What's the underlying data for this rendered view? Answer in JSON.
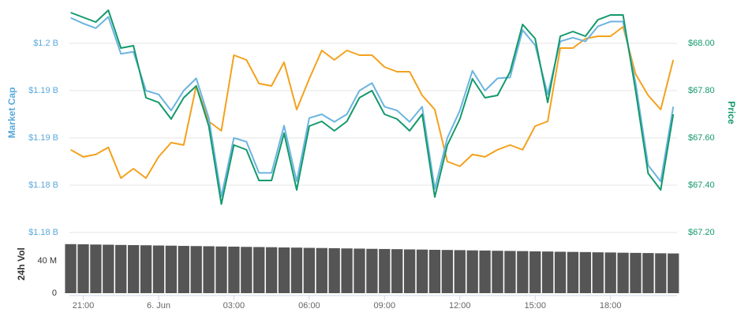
{
  "chart_data": [
    {
      "type": "line",
      "ylabel": "Market Cap",
      "y2label": "Price",
      "x": [
        20.5,
        21,
        21.5,
        22,
        22.5,
        23,
        23.5,
        24,
        24.5,
        25,
        25.5,
        26,
        26.5,
        27,
        27.5,
        28,
        28.5,
        29,
        29.5,
        30,
        30.5,
        31,
        31.5,
        32,
        32.5,
        33,
        33.5,
        34,
        34.5,
        35,
        35.5,
        36,
        36.5,
        37,
        37.5,
        38,
        38.5,
        39,
        39.5,
        40,
        40.5,
        41,
        41.5,
        42,
        42.5,
        43,
        43.5,
        44,
        44.5
      ],
      "xlim": [
        20.45,
        44.65
      ],
      "xticks": [
        {
          "value": 21,
          "label": "21:00"
        },
        {
          "value": 24,
          "label": "6. Jun"
        },
        {
          "value": 27,
          "label": "03:00"
        },
        {
          "value": 30,
          "label": "06:00"
        },
        {
          "value": 33,
          "label": "09:00"
        },
        {
          "value": 36,
          "label": "12:00"
        },
        {
          "value": 39,
          "label": "15:00"
        },
        {
          "value": 42,
          "label": "18:00"
        }
      ],
      "ylim": [
        1.18,
        1.20375
      ],
      "yticks": [
        {
          "value": 1.18,
          "label": "$1.18 B"
        },
        {
          "value": 1.185,
          "label": "$1.18 B"
        },
        {
          "value": 1.19,
          "label": "$1.19 B"
        },
        {
          "value": 1.195,
          "label": "$1.19 B"
        },
        {
          "value": 1.2,
          "label": "$1.2 B"
        }
      ],
      "y2lim": [
        67.2,
        68.15
      ],
      "y2ticks": [
        {
          "value": 67.2,
          "label": "$67.20"
        },
        {
          "value": 67.4,
          "label": "$67.40"
        },
        {
          "value": 67.6,
          "label": "$67.60"
        },
        {
          "value": 67.8,
          "label": "$67.80"
        },
        {
          "value": 68,
          "label": "$68.00"
        }
      ],
      "grid": true,
      "series": [
        {
          "color": "#f4a11d",
          "axis": "y2",
          "values": [
            67.55,
            67.52,
            67.53,
            67.56,
            67.43,
            67.47,
            67.43,
            67.52,
            67.58,
            67.57,
            67.82,
            67.67,
            67.63,
            67.95,
            67.93,
            67.83,
            67.82,
            67.92,
            67.72,
            67.85,
            67.97,
            67.93,
            67.97,
            67.95,
            67.95,
            67.9,
            67.88,
            67.88,
            67.78,
            67.72,
            67.5,
            67.48,
            67.53,
            67.52,
            67.55,
            67.57,
            67.55,
            67.65,
            67.67,
            67.98,
            67.98,
            68.02,
            68.03,
            68.03,
            68.07,
            67.87,
            67.78,
            67.72,
            67.93
          ]
        },
        {
          "color": "#6cb4e0",
          "axis": "y",
          "values": [
            1.2027,
            1.2021,
            1.2016,
            1.2028,
            1.1989,
            1.1991,
            1.195,
            1.1946,
            1.1929,
            1.195,
            1.1963,
            1.1921,
            1.1838,
            1.19,
            1.1896,
            1.1863,
            1.1863,
            1.1913,
            1.1854,
            1.1921,
            1.1925,
            1.1917,
            1.1925,
            1.195,
            1.1958,
            1.1933,
            1.1929,
            1.1917,
            1.1933,
            1.1846,
            1.19,
            1.1929,
            1.1971,
            1.195,
            1.1963,
            1.1964,
            1.2014,
            1.1998,
            1.1946,
            1.2002,
            1.2006,
            1.2002,
            1.2018,
            1.2023,
            1.2023,
            1.1958,
            1.1871,
            1.1854,
            1.1933
          ]
        },
        {
          "color": "#13996b",
          "axis": "y2",
          "values": [
            68.13,
            68.11,
            68.09,
            68.14,
            67.98,
            67.99,
            67.77,
            67.75,
            67.68,
            67.77,
            67.82,
            67.65,
            67.32,
            67.57,
            67.55,
            67.42,
            67.42,
            67.62,
            67.38,
            67.65,
            67.67,
            67.63,
            67.67,
            67.77,
            67.8,
            67.7,
            67.68,
            67.63,
            67.7,
            67.35,
            67.57,
            67.68,
            67.85,
            67.77,
            67.78,
            67.88,
            68.08,
            68.02,
            67.75,
            68.03,
            68.05,
            68.03,
            68.1,
            68.12,
            68.12,
            67.8,
            67.45,
            67.38,
            67.7
          ]
        }
      ]
    },
    {
      "type": "bar",
      "ylabel": "24h Vol",
      "x": [
        20.5,
        21,
        21.5,
        22,
        22.5,
        23,
        23.5,
        24,
        24.5,
        25,
        25.5,
        26,
        26.5,
        27,
        27.5,
        28,
        28.5,
        29,
        29.5,
        30,
        30.5,
        31,
        31.5,
        32,
        32.5,
        33,
        33.5,
        34,
        34.5,
        35,
        35.5,
        36,
        36.5,
        37,
        37.5,
        38,
        38.5,
        39,
        39.5,
        40,
        40.5,
        41,
        41.5,
        42,
        42.5,
        43,
        43.5,
        44,
        44.5
      ],
      "xlim": [
        20.45,
        44.65
      ],
      "ylim": [
        0,
        70
      ],
      "yticks": [
        0,
        {
          "value": 40,
          "label": "40 M"
        }
      ],
      "color": "#555555",
      "values": [
        60.5,
        60.3,
        60,
        59.8,
        59.5,
        59.3,
        59.1,
        58.8,
        58.6,
        58.3,
        58.1,
        57.9,
        57.6,
        57.4,
        57.1,
        56.9,
        56.7,
        56.4,
        56.2,
        55.9,
        55.7,
        55.5,
        55.2,
        55,
        54.7,
        54.5,
        54.3,
        54,
        53.8,
        53.5,
        53.3,
        53.1,
        52.8,
        52.6,
        52.3,
        52.1,
        51.9,
        51.6,
        51.4,
        51.1,
        50.9,
        50.7,
        50.4,
        50.2,
        49.9,
        49.7,
        49.5,
        49.2,
        49
      ]
    }
  ]
}
